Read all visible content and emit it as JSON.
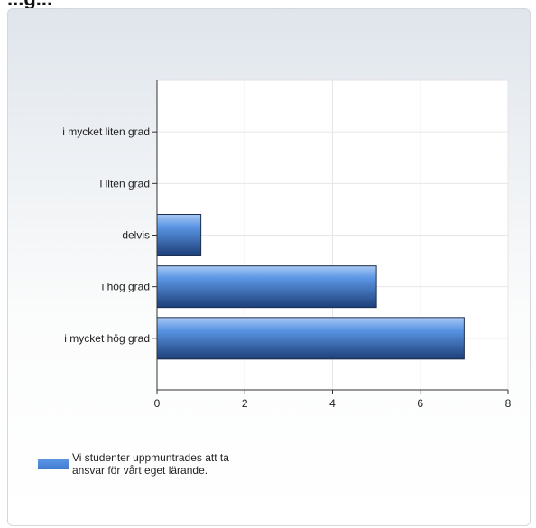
{
  "page": {
    "title": "...g..."
  },
  "chart_data": {
    "type": "bar",
    "orientation": "horizontal",
    "categories": [
      "i mycket liten grad",
      "i liten grad",
      "delvis",
      "i hög grad",
      "i mycket hög grad"
    ],
    "series": [
      {
        "name": "Vi studenter uppmuntrades att ta ansvar för vårt eget lärande.",
        "values": [
          0,
          0,
          1,
          5,
          7
        ],
        "color": "#4a86d8"
      }
    ],
    "xlim": [
      0,
      8
    ],
    "xticks": [
      "0",
      "2",
      "4",
      "6",
      "8"
    ],
    "grid": true,
    "legend_position": "bottom-left"
  }
}
